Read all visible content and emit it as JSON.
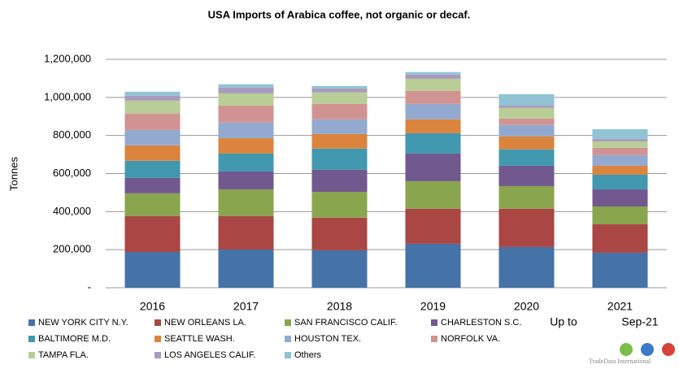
{
  "chart_data": {
    "type": "stacked-bar",
    "title": "USA Imports of Arabica coffee, not organic or decaf.",
    "y_label": "Tonnes",
    "categories": [
      "2016",
      "2017",
      "2018",
      "2019",
      "2020",
      "2021"
    ],
    "annotations": [
      "Up to",
      "Sep-21"
    ],
    "logo": "TradeData International",
    "series": [
      {
        "name": "NEW YORK CITY N.Y.",
        "color": "#4572A7",
        "values": [
          188000,
          201000,
          197000,
          231000,
          214000,
          184000
        ]
      },
      {
        "name": "NEW ORLEANS LA.",
        "color": "#AA4643",
        "values": [
          188000,
          175000,
          171000,
          184000,
          201000,
          149000
        ]
      },
      {
        "name": "SAN FRANCISCO CALIF.",
        "color": "#89A54E",
        "values": [
          120000,
          141000,
          136000,
          145000,
          119000,
          94000
        ]
      },
      {
        "name": "CHARLESTON S.C.",
        "color": "#71588F",
        "values": [
          81000,
          94000,
          116000,
          145000,
          107000,
          90000
        ]
      },
      {
        "name": "BALTIMORE M.D.",
        "color": "#4198AF",
        "values": [
          90000,
          94000,
          111000,
          107000,
          86000,
          77000
        ]
      },
      {
        "name": "SEATTLE WASH.",
        "color": "#DB843D",
        "values": [
          81000,
          81000,
          77000,
          73000,
          68000,
          47000
        ]
      },
      {
        "name": "HOUSTON TEX.",
        "color": "#93A9CF",
        "values": [
          81000,
          82000,
          77000,
          81000,
          60000,
          56000
        ]
      },
      {
        "name": "NORFOLK VA.",
        "color": "#D19392",
        "values": [
          86000,
          89000,
          81000,
          68000,
          34000,
          38000
        ]
      },
      {
        "name": "TAMPA FLA.",
        "color": "#B9CD96",
        "values": [
          68000,
          64000,
          60000,
          64000,
          56000,
          34000
        ]
      },
      {
        "name": "LOS ANGELES CALIF.",
        "color": "#A99BBD",
        "values": [
          26000,
          30000,
          21000,
          22000,
          12000,
          13000
        ]
      },
      {
        "name": "Others",
        "color": "#91C3D5",
        "values": [
          21000,
          18000,
          13000,
          13000,
          60000,
          51000
        ]
      }
    ],
    "ylim": [
      0,
      1200000
    ],
    "yticks": [
      {
        "value": 0,
        "label": "-"
      },
      {
        "value": 200000,
        "label": "200,000"
      },
      {
        "value": 400000,
        "label": "400,000"
      },
      {
        "value": 600000,
        "label": "600,000"
      },
      {
        "value": 800000,
        "label": "800,000"
      },
      {
        "value": 1000000,
        "label": "1,000,000"
      },
      {
        "value": 1200000,
        "label": "1,200,000"
      }
    ],
    "grid": true
  }
}
